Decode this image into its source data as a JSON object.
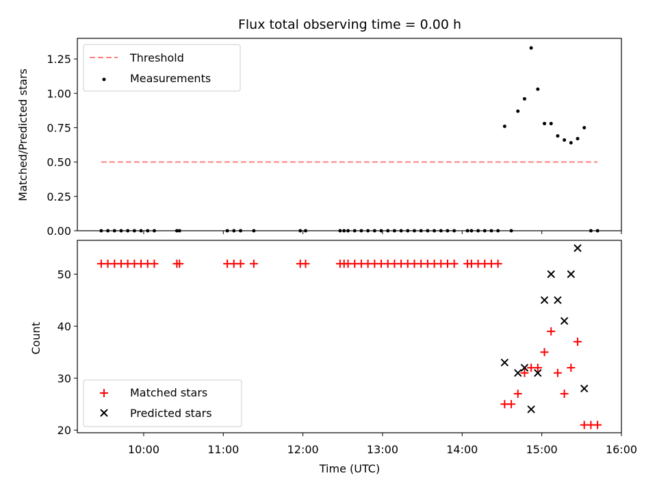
{
  "chart_data": [
    {
      "type": "scatter",
      "title": "Flux total observing time = 0.00 h",
      "xlabel": "",
      "ylabel": "Matched/Predicted stars",
      "xlim": [
        "09:10",
        "16:00"
      ],
      "ylim": [
        0,
        1.4
      ],
      "y_ticks": [
        "0.00",
        "0.25",
        "0.50",
        "0.75",
        "1.00",
        "1.25"
      ],
      "grid": false,
      "legend_position": "top-left",
      "threshold": {
        "name": "Threshold",
        "value": 0.5,
        "x_start": "09:28",
        "x_end": "15:42",
        "color": "#ff7f7f"
      },
      "series": [
        {
          "name": "Measurements",
          "color": "#000000",
          "points": [
            [
              "09:28",
              0
            ],
            [
              "09:33",
              0
            ],
            [
              "09:38",
              0
            ],
            [
              "09:43",
              0
            ],
            [
              "09:48",
              0
            ],
            [
              "09:53",
              0
            ],
            [
              "09:58",
              0
            ],
            [
              "10:03",
              0
            ],
            [
              "10:08",
              0
            ],
            [
              "10:25",
              0
            ],
            [
              "10:27",
              0
            ],
            [
              "11:03",
              0
            ],
            [
              "11:08",
              0
            ],
            [
              "11:13",
              0
            ],
            [
              "11:23",
              0
            ],
            [
              "11:58",
              0
            ],
            [
              "12:02",
              0
            ],
            [
              "12:28",
              0
            ],
            [
              "12:31",
              0
            ],
            [
              "12:34",
              0
            ],
            [
              "12:39",
              0
            ],
            [
              "12:44",
              0
            ],
            [
              "12:49",
              0
            ],
            [
              "12:54",
              0
            ],
            [
              "12:59",
              0
            ],
            [
              "13:04",
              0
            ],
            [
              "13:09",
              0
            ],
            [
              "13:14",
              0
            ],
            [
              "13:19",
              0
            ],
            [
              "13:24",
              0
            ],
            [
              "13:29",
              0
            ],
            [
              "13:34",
              0
            ],
            [
              "13:39",
              0
            ],
            [
              "13:44",
              0
            ],
            [
              "13:49",
              0
            ],
            [
              "13:54",
              0
            ],
            [
              "14:04",
              0
            ],
            [
              "14:07",
              0
            ],
            [
              "14:12",
              0
            ],
            [
              "14:17",
              0
            ],
            [
              "14:22",
              0
            ],
            [
              "14:27",
              0
            ],
            [
              "14:32",
              0.76
            ],
            [
              "14:37",
              0
            ],
            [
              "14:42",
              0.87
            ],
            [
              "14:47",
              0.96
            ],
            [
              "14:52",
              1.33
            ],
            [
              "14:57",
              1.03
            ],
            [
              "15:02",
              0.78
            ],
            [
              "15:07",
              0.78
            ],
            [
              "15:12",
              0.69
            ],
            [
              "15:17",
              0.66
            ],
            [
              "15:22",
              0.64
            ],
            [
              "15:27",
              0.67
            ],
            [
              "15:32",
              0.75
            ],
            [
              "15:37",
              0
            ],
            [
              "15:42",
              0
            ]
          ]
        }
      ]
    },
    {
      "type": "scatter",
      "title": "",
      "xlabel": "Time (UTC)",
      "ylabel": "Count",
      "xlim": [
        "09:10",
        "16:00"
      ],
      "ylim": [
        19.5,
        56.5
      ],
      "x_ticks": [
        "10:00",
        "11:00",
        "12:00",
        "13:00",
        "14:00",
        "15:00",
        "16:00"
      ],
      "y_ticks": [
        "20",
        "30",
        "40",
        "50"
      ],
      "grid": false,
      "legend_position": "bottom-left",
      "series": [
        {
          "name": "Matched stars",
          "marker": "plus",
          "color": "#ff0000",
          "points": [
            [
              "09:28",
              52
            ],
            [
              "09:33",
              52
            ],
            [
              "09:38",
              52
            ],
            [
              "09:43",
              52
            ],
            [
              "09:48",
              52
            ],
            [
              "09:53",
              52
            ],
            [
              "09:58",
              52
            ],
            [
              "10:03",
              52
            ],
            [
              "10:08",
              52
            ],
            [
              "10:25",
              52
            ],
            [
              "10:27",
              52
            ],
            [
              "11:03",
              52
            ],
            [
              "11:08",
              52
            ],
            [
              "11:13",
              52
            ],
            [
              "11:23",
              52
            ],
            [
              "11:58",
              52
            ],
            [
              "12:02",
              52
            ],
            [
              "12:28",
              52
            ],
            [
              "12:31",
              52
            ],
            [
              "12:34",
              52
            ],
            [
              "12:39",
              52
            ],
            [
              "12:44",
              52
            ],
            [
              "12:49",
              52
            ],
            [
              "12:54",
              52
            ],
            [
              "12:59",
              52
            ],
            [
              "13:04",
              52
            ],
            [
              "13:09",
              52
            ],
            [
              "13:14",
              52
            ],
            [
              "13:19",
              52
            ],
            [
              "13:24",
              52
            ],
            [
              "13:29",
              52
            ],
            [
              "13:34",
              52
            ],
            [
              "13:39",
              52
            ],
            [
              "13:44",
              52
            ],
            [
              "13:49",
              52
            ],
            [
              "13:54",
              52
            ],
            [
              "14:04",
              52
            ],
            [
              "14:07",
              52
            ],
            [
              "14:12",
              52
            ],
            [
              "14:17",
              52
            ],
            [
              "14:22",
              52
            ],
            [
              "14:27",
              52
            ],
            [
              "14:32",
              25
            ],
            [
              "14:37",
              25
            ],
            [
              "14:42",
              27
            ],
            [
              "14:47",
              31
            ],
            [
              "14:52",
              32
            ],
            [
              "14:57",
              32
            ],
            [
              "15:02",
              35
            ],
            [
              "15:07",
              39
            ],
            [
              "15:12",
              31
            ],
            [
              "15:17",
              27
            ],
            [
              "15:22",
              32
            ],
            [
              "15:27",
              37
            ],
            [
              "15:32",
              21
            ],
            [
              "15:37",
              21
            ],
            [
              "15:42",
              21
            ]
          ]
        },
        {
          "name": "Predicted stars",
          "marker": "x",
          "color": "#000000",
          "points": [
            [
              "14:32",
              33
            ],
            [
              "14:42",
              31
            ],
            [
              "14:47",
              32
            ],
            [
              "14:52",
              24
            ],
            [
              "14:57",
              31
            ],
            [
              "15:02",
              45
            ],
            [
              "15:07",
              50
            ],
            [
              "15:12",
              45
            ],
            [
              "15:17",
              41
            ],
            [
              "15:22",
              50
            ],
            [
              "15:27",
              55
            ],
            [
              "15:32",
              28
            ]
          ]
        }
      ]
    }
  ]
}
